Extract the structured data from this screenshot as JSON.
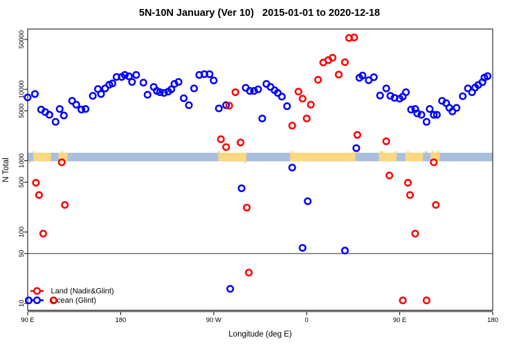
{
  "title": "5N-10N January (Ver 10)   2015-01-01 to 2020-12-18",
  "x_axis": {
    "label": "Longitude (deg E)",
    "ticks": [
      {
        "pos": 90,
        "label": "90 E"
      },
      {
        "pos": 180,
        "label": "180"
      },
      {
        "pos": 270,
        "label": "90 W"
      },
      {
        "pos": 360,
        "label": "0"
      },
      {
        "pos": 450,
        "label": "90 E"
      },
      {
        "pos": 540,
        "label": "180"
      }
    ]
  },
  "y_axis": {
    "label": "N Total",
    "ticks": [
      50000,
      10000,
      5000,
      1000,
      500,
      100,
      50,
      10
    ]
  },
  "legend": [
    {
      "label": "Land (Nadir&Glint)",
      "color": "#ff0000"
    },
    {
      "label": "Ocean (Glint)",
      "color": "#0000ff"
    }
  ],
  "colors": {
    "land_marker": "#ff0000",
    "ocean_marker": "#0000ff",
    "ocean_band": "#aabfde",
    "land_band": "#fbd87f",
    "box": "#3c3c3c",
    "bottom_axis": "#707070",
    "ref_line": "#2a2a2a"
  },
  "chart_data": {
    "type": "scatter",
    "y_scale": "log10",
    "x_range": [
      90,
      540
    ],
    "y_range": [
      8,
      70000
    ],
    "reference_line_y": 50,
    "band": {
      "value_low": 980,
      "value_high": 1290,
      "description": "latitude-strip map: ocean band with land segments",
      "land_segments_deg": [
        [
          95.5,
          112.5
        ],
        [
          120,
          128.5
        ],
        [
          274.5,
          301.5
        ],
        [
          344,
          407
        ],
        [
          430,
          447
        ],
        [
          455.5,
          472.5
        ],
        [
          480,
          488.5
        ]
      ],
      "coast_speckles_deg": [
        {
          "range": [
            91,
            93
          ],
          "side": "bottom"
        },
        {
          "range": [
            95,
            97
          ],
          "side": "top"
        },
        {
          "range": [
            122,
            124
          ],
          "side": "top"
        },
        {
          "range": [
            274,
            276
          ],
          "side": "top"
        },
        {
          "range": [
            300,
            302
          ],
          "side": "bottom"
        },
        {
          "range": [
            345,
            347
          ],
          "side": "top"
        },
        {
          "range": [
            405,
            407
          ],
          "side": "top"
        },
        {
          "range": [
            408,
            411
          ],
          "side": "top"
        },
        {
          "range": [
            431,
            434
          ],
          "side": "top"
        },
        {
          "range": [
            445,
            447
          ],
          "side": "top"
        },
        {
          "range": [
            457,
            459
          ],
          "side": "top"
        },
        {
          "range": [
            474,
            477
          ],
          "side": "top"
        },
        {
          "range": [
            481,
            483
          ],
          "side": "top"
        },
        {
          "range": [
            486,
            488
          ],
          "side": "top"
        }
      ]
    },
    "series": [
      {
        "name": "Land (Nadir&Glint)",
        "color": "#ff0000",
        "points": [
          [
            98,
            490
          ],
          [
            101,
            330
          ],
          [
            105,
            95
          ],
          [
            115,
            11
          ],
          [
            123,
            950
          ],
          [
            126,
            240
          ],
          [
            277,
            2000
          ],
          [
            282,
            1550
          ],
          [
            285,
            5900
          ],
          [
            291,
            9100
          ],
          [
            296,
            1800
          ],
          [
            302,
            220
          ],
          [
            304,
            27
          ],
          [
            346,
            3100
          ],
          [
            352,
            9300
          ],
          [
            356,
            7400
          ],
          [
            360,
            3900
          ],
          [
            364,
            6100
          ],
          [
            371,
            13600
          ],
          [
            376,
            23800
          ],
          [
            381,
            25700
          ],
          [
            385,
            27700
          ],
          [
            391,
            16100
          ],
          [
            397,
            24000
          ],
          [
            401,
            52500
          ],
          [
            406,
            53300
          ],
          [
            409,
            2300
          ],
          [
            437,
            1870
          ],
          [
            440,
            620
          ],
          [
            453,
            11
          ],
          [
            458,
            490
          ],
          [
            460,
            330
          ],
          [
            465,
            95
          ],
          [
            476,
            11
          ],
          [
            483,
            950
          ],
          [
            485,
            240
          ]
        ]
      },
      {
        "name": "Ocean (Glint)",
        "color": "#0000ff",
        "points": [
          [
            90,
            7700
          ],
          [
            91,
            11
          ],
          [
            97,
            8600
          ],
          [
            103,
            5200
          ],
          [
            107,
            4800
          ],
          [
            111,
            4400
          ],
          [
            117,
            3500
          ],
          [
            121,
            5300
          ],
          [
            125,
            4300
          ],
          [
            133,
            6900
          ],
          [
            137,
            6100
          ],
          [
            142,
            5200
          ],
          [
            146,
            5300
          ],
          [
            153,
            8100
          ],
          [
            158,
            10100
          ],
          [
            161,
            8600
          ],
          [
            165,
            10300
          ],
          [
            169,
            11600
          ],
          [
            172,
            12100
          ],
          [
            176,
            14900
          ],
          [
            181,
            14900
          ],
          [
            184,
            15900
          ],
          [
            188,
            15200
          ],
          [
            191,
            12700
          ],
          [
            195,
            15900
          ],
          [
            202,
            12400
          ],
          [
            206,
            8400
          ],
          [
            212,
            10800
          ],
          [
            215,
            9500
          ],
          [
            218,
            9100
          ],
          [
            222,
            8900
          ],
          [
            226,
            9300
          ],
          [
            229,
            10000
          ],
          [
            232,
            11900
          ],
          [
            236,
            12700
          ],
          [
            241,
            7500
          ],
          [
            246,
            6000
          ],
          [
            251,
            10300
          ],
          [
            256,
            15900
          ],
          [
            261,
            16300
          ],
          [
            266,
            16300
          ],
          [
            270,
            13300
          ],
          [
            275,
            5400
          ],
          [
            282,
            6000
          ],
          [
            286,
            16
          ],
          [
            297,
            410
          ],
          [
            301,
            10500
          ],
          [
            305,
            9500
          ],
          [
            309,
            9500
          ],
          [
            313,
            10000
          ],
          [
            317,
            3900
          ],
          [
            321,
            11900
          ],
          [
            325,
            10800
          ],
          [
            329,
            9700
          ],
          [
            332,
            8900
          ],
          [
            336,
            7900
          ],
          [
            341,
            5800
          ],
          [
            346,
            800
          ],
          [
            356,
            60
          ],
          [
            361,
            270
          ],
          [
            397,
            55
          ],
          [
            408,
            1500
          ],
          [
            411,
            14500
          ],
          [
            414,
            15600
          ],
          [
            420,
            13400
          ],
          [
            425,
            14800
          ],
          [
            431,
            8200
          ],
          [
            437,
            10300
          ],
          [
            441,
            8100
          ],
          [
            445,
            7600
          ],
          [
            450,
            7400
          ],
          [
            453,
            7900
          ],
          [
            456,
            9100
          ],
          [
            461,
            5200
          ],
          [
            465,
            5300
          ],
          [
            467,
            4600
          ],
          [
            471,
            4400
          ],
          [
            476,
            3500
          ],
          [
            479,
            5300
          ],
          [
            483,
            4400
          ],
          [
            486,
            4400
          ],
          [
            491,
            6900
          ],
          [
            495,
            6400
          ],
          [
            498,
            5500
          ],
          [
            501,
            4900
          ],
          [
            505,
            5500
          ],
          [
            511,
            8000
          ],
          [
            516,
            10300
          ],
          [
            520,
            9100
          ],
          [
            523,
            10600
          ],
          [
            526,
            11500
          ],
          [
            530,
            12600
          ],
          [
            532,
            14600
          ],
          [
            535,
            15300
          ]
        ]
      }
    ]
  }
}
